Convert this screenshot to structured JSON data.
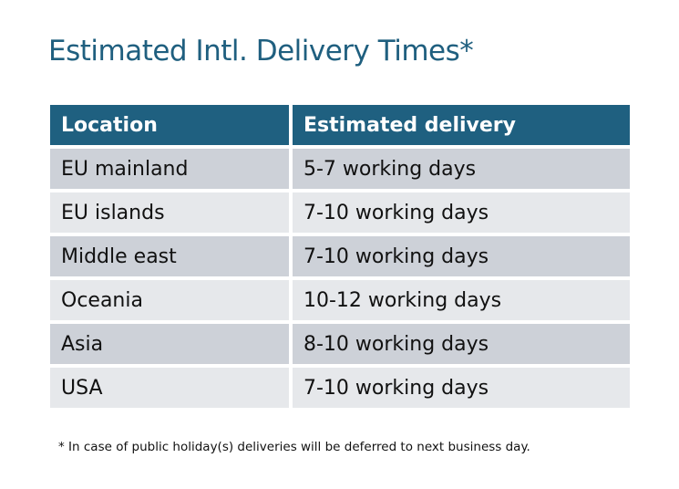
{
  "title": "Estimated Intl. Delivery Times*",
  "table": {
    "headers": [
      "Location",
      "Estimated delivery"
    ],
    "rows": [
      [
        "EU mainland",
        "5-7 working days"
      ],
      [
        "EU islands",
        "7-10 working days"
      ],
      [
        "Middle east",
        "7-10 working days"
      ],
      [
        "Oceania",
        "10-12 working days"
      ],
      [
        "Asia",
        "8-10 working days"
      ],
      [
        "USA",
        "7-10 working days"
      ]
    ]
  },
  "footnote": "* In case of public holiday(s) deliveries will be deferred to next business day.",
  "colors": {
    "header": "#1f6080",
    "title": "#1f5f7f",
    "row_odd": "#cdd1d8",
    "row_even": "#e6e8eb"
  }
}
